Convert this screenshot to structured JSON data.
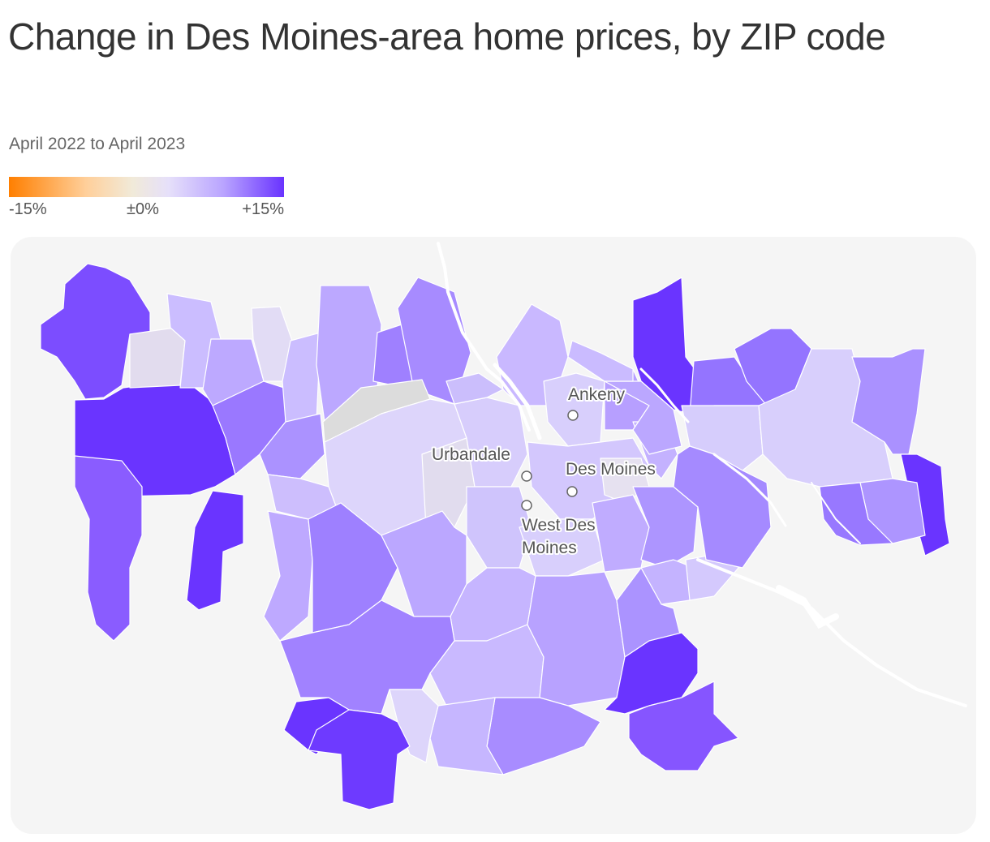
{
  "title": "Change in Des Moines-area home prices, by ZIP code",
  "subtitle": "April 2022 to April 2023",
  "legend": {
    "labels": [
      "-15%",
      "±0%",
      "+15%"
    ],
    "colors": {
      "low": "#ff7f00",
      "mid": "#ece8e4",
      "high": "#6933ff"
    },
    "range": [
      -15,
      15
    ]
  },
  "map": {
    "background_color": "#f5f5f5",
    "no_data_color": "#dcdcdc",
    "cities": [
      {
        "name": "Ankeny"
      },
      {
        "name": "Urbandale"
      },
      {
        "name": "Des Moines"
      },
      {
        "name": "West Des Moines",
        "lines": [
          "West Des",
          "Moines"
        ]
      }
    ]
  }
}
